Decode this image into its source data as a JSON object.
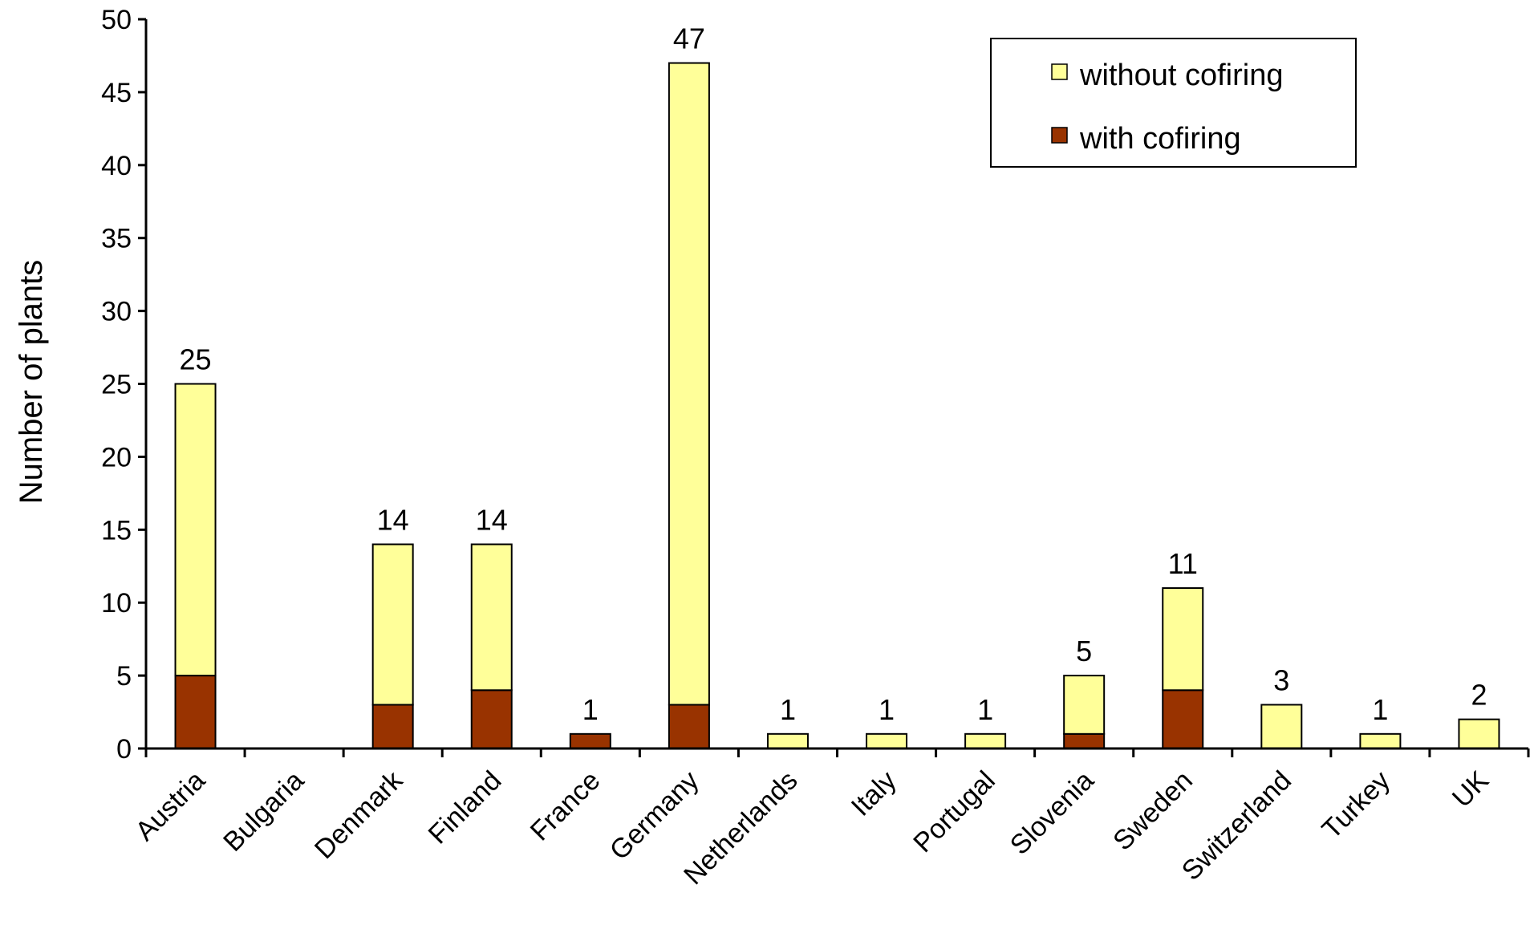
{
  "chart_data": {
    "type": "bar",
    "stacked": true,
    "title": "",
    "xlabel": "",
    "ylabel": "Number of plants",
    "ylim": [
      0,
      50
    ],
    "yticks": [
      0,
      5,
      10,
      15,
      20,
      25,
      30,
      35,
      40,
      45,
      50
    ],
    "grid": false,
    "legend_position": "top-right",
    "categories": [
      "Austria",
      "Bulgaria",
      "Denmark",
      "Finland",
      "France",
      "Germany",
      "Netherlands",
      "Italy",
      "Portugal",
      "Slovenia",
      "Sweden",
      "Switzerland",
      "Turkey",
      "UK"
    ],
    "series": [
      {
        "name": "with cofiring",
        "color": "#993300",
        "values": [
          5,
          0,
          3,
          4,
          1,
          3,
          0,
          0,
          0,
          1,
          4,
          0,
          0,
          0
        ]
      },
      {
        "name": "without cofiring",
        "color": "#FFFF99",
        "values": [
          20,
          0,
          11,
          10,
          0,
          44,
          1,
          1,
          1,
          4,
          7,
          3,
          1,
          2
        ]
      }
    ],
    "totals": [
      25,
      null,
      14,
      14,
      1,
      47,
      1,
      1,
      1,
      5,
      11,
      3,
      1,
      2
    ],
    "total_labels": [
      "25",
      "",
      "14",
      "14",
      "1",
      "47",
      "1",
      "1",
      "1",
      "5",
      "11",
      "3",
      "1",
      "2"
    ],
    "legend_order": [
      "without cofiring",
      "with cofiring"
    ]
  }
}
